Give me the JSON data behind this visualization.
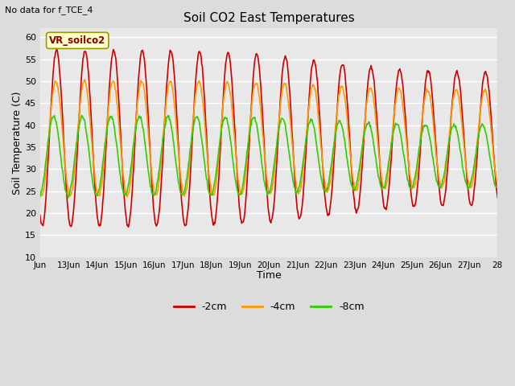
{
  "title": "Soil CO2 East Temperatures",
  "no_data_text": "No data for f_TCE_4",
  "xlabel": "Time",
  "ylabel": "Soil Temperature (C)",
  "ylim": [
    10,
    62
  ],
  "xtick_labels": [
    "Jun",
    "13Jun",
    "14Jun",
    "15Jun",
    "16Jun",
    "17Jun",
    "18Jun",
    "19Jun",
    "20Jun",
    "21Jun",
    "22Jun",
    "23Jun",
    "24Jun",
    "25Jun",
    "26Jun",
    "27Jun",
    "28"
  ],
  "ytick_values": [
    10,
    15,
    20,
    25,
    30,
    35,
    40,
    45,
    50,
    55,
    60
  ],
  "legend_label": "VR_soilco2",
  "line_labels": [
    "-2cm",
    "-4cm",
    "-8cm"
  ],
  "line_colors": [
    "#cc0000",
    "#ff9900",
    "#33cc00"
  ],
  "background_color": "#dcdcdc",
  "plot_bg_color": "#e8e8e8",
  "red_base": 37,
  "orange_base": 37,
  "green_base": 33,
  "red_amp_early": 20,
  "red_amp_late": 15,
  "orange_amp_early": 13,
  "orange_amp_late": 11,
  "green_amp_early": 9,
  "green_amp_late": 7,
  "transition_day": 10
}
